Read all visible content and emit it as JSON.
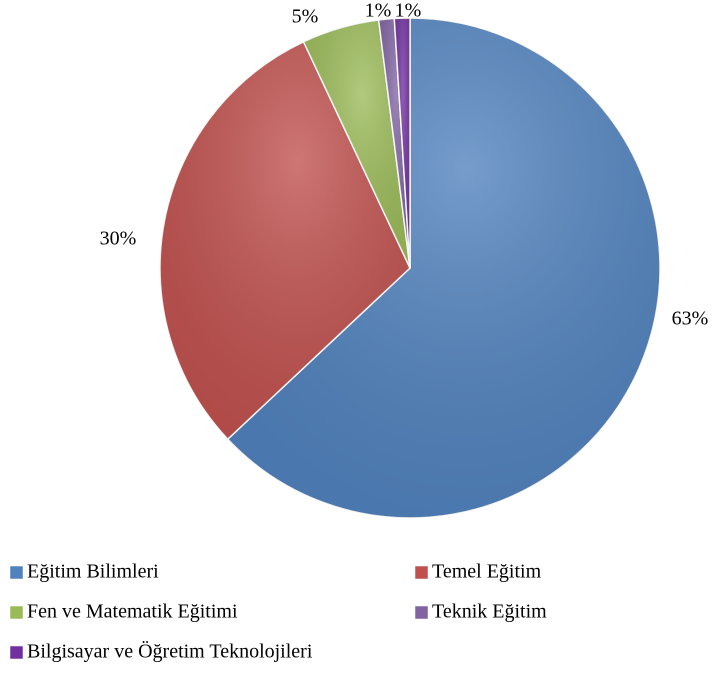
{
  "chart_data": {
    "type": "pie",
    "categories": [
      "Eğitim Bilimleri",
      "Temel Eğitim",
      "Fen ve Matematik Eğitimi",
      "Teknik Eğitim",
      "Bilgisayar ve Öğretim Teknolojileri"
    ],
    "values": [
      63,
      30,
      5,
      1,
      1
    ],
    "value_labels": [
      "63%",
      "30%",
      "5%",
      "1%",
      "1%"
    ],
    "colors": [
      "#4f81bd",
      "#c0504d",
      "#9bbb59",
      "#8064a2",
      "#7030a0"
    ]
  }
}
